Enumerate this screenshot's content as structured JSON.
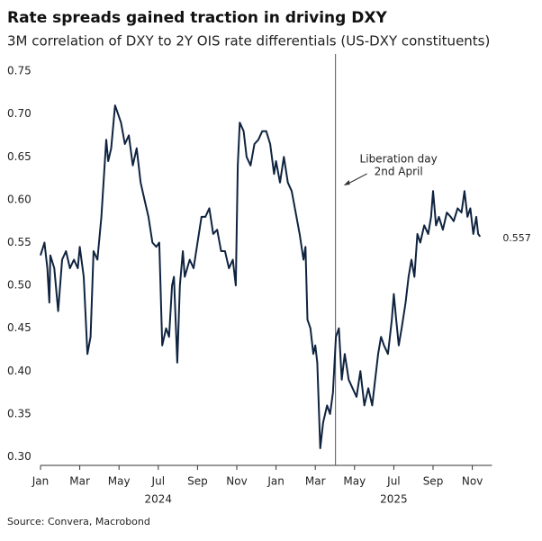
{
  "chart_data": {
    "type": "line",
    "title": "Rate spreads gained traction in driving DXY",
    "subtitle": "3M correlation of DXY to 2Y OIS rate differentials (US-DXY constituents)",
    "source": "Source: Convera, Macrobond",
    "x": [
      0,
      0.2,
      0.35,
      0.45,
      0.5,
      0.7,
      0.9,
      1.1,
      1.3,
      1.5,
      1.7,
      1.9,
      2.0,
      2.2,
      2.39,
      2.55,
      2.7,
      2.9,
      3.1,
      3.35,
      3.45,
      3.6,
      3.8,
      3.95,
      4.1,
      4.3,
      4.5,
      4.7,
      4.9,
      5.1,
      5.3,
      5.5,
      5.7,
      5.9,
      6.05,
      6.2,
      6.4,
      6.55,
      6.7,
      6.8,
      6.97,
      7.1,
      7.25,
      7.35,
      7.6,
      7.8,
      8.0,
      8.2,
      8.4,
      8.6,
      8.8,
      9.0,
      9.2,
      9.4,
      9.6,
      9.8,
      9.95,
      10.05,
      10.15,
      10.35,
      10.5,
      10.7,
      10.9,
      11.1,
      11.3,
      11.5,
      11.7,
      11.9,
      12.0,
      12.2,
      12.4,
      12.6,
      12.8,
      13.0,
      13.2,
      13.4,
      13.5,
      13.6,
      13.75,
      13.9,
      14.0,
      14.1,
      14.25,
      14.4,
      14.6,
      14.75,
      14.9,
      15.05,
      15.2,
      15.35,
      15.5,
      15.7,
      15.9,
      16.1,
      16.3,
      16.5,
      16.7,
      16.9,
      17.05,
      17.2,
      17.35,
      17.5,
      17.7,
      17.9,
      18.0,
      18.1,
      18.25,
      18.4,
      18.6,
      18.75,
      18.9,
      19.05,
      19.2,
      19.35,
      19.55,
      19.75,
      19.9,
      20.0,
      20.15,
      20.3,
      20.5,
      20.7,
      20.9,
      21.05,
      21.25,
      21.45,
      21.6,
      21.75,
      21.9,
      22.05,
      22.2,
      22.3,
      22.4
    ],
    "series": [
      {
        "name": "3M correlation",
        "color": "#0f2340",
        "values": [
          0.535,
          0.55,
          0.52,
          0.48,
          0.535,
          0.52,
          0.47,
          0.53,
          0.54,
          0.52,
          0.53,
          0.52,
          0.545,
          0.51,
          0.42,
          0.44,
          0.54,
          0.53,
          0.58,
          0.67,
          0.645,
          0.66,
          0.71,
          0.7,
          0.69,
          0.665,
          0.675,
          0.64,
          0.66,
          0.62,
          0.6,
          0.58,
          0.55,
          0.545,
          0.55,
          0.43,
          0.45,
          0.44,
          0.5,
          0.51,
          0.41,
          0.5,
          0.54,
          0.51,
          0.53,
          0.52,
          0.55,
          0.58,
          0.58,
          0.59,
          0.56,
          0.565,
          0.54,
          0.54,
          0.52,
          0.53,
          0.5,
          0.64,
          0.69,
          0.68,
          0.65,
          0.64,
          0.665,
          0.67,
          0.68,
          0.68,
          0.665,
          0.63,
          0.645,
          0.62,
          0.65,
          0.62,
          0.61,
          0.585,
          0.56,
          0.53,
          0.545,
          0.46,
          0.45,
          0.42,
          0.43,
          0.41,
          0.31,
          0.34,
          0.36,
          0.35,
          0.375,
          0.44,
          0.45,
          0.39,
          0.42,
          0.39,
          0.38,
          0.37,
          0.4,
          0.36,
          0.38,
          0.36,
          0.39,
          0.42,
          0.44,
          0.43,
          0.42,
          0.46,
          0.49,
          0.465,
          0.43,
          0.45,
          0.48,
          0.51,
          0.53,
          0.51,
          0.56,
          0.55,
          0.57,
          0.56,
          0.58,
          0.61,
          0.57,
          0.58,
          0.565,
          0.585,
          0.58,
          0.575,
          0.59,
          0.585,
          0.61,
          0.58,
          0.59,
          0.56,
          0.58,
          0.56,
          0.557
        ]
      }
    ],
    "end_label": "0.557",
    "xlim": [
      0,
      23
    ],
    "xticks": [
      {
        "value": 0,
        "label": "Jan"
      },
      {
        "value": 2,
        "label": "Mar"
      },
      {
        "value": 4,
        "label": "May"
      },
      {
        "value": 6,
        "label": "Jul"
      },
      {
        "value": 8,
        "label": "Sep"
      },
      {
        "value": 10,
        "label": "Nov"
      },
      {
        "value": 12,
        "label": "Jan"
      },
      {
        "value": 14,
        "label": "Mar"
      },
      {
        "value": 16,
        "label": "May"
      },
      {
        "value": 18,
        "label": "Jul"
      },
      {
        "value": 20,
        "label": "Sep"
      },
      {
        "value": 22,
        "label": "Nov"
      }
    ],
    "x_groups": [
      {
        "label": "2024",
        "range": [
          0,
          12
        ]
      },
      {
        "label": "2025",
        "range": [
          12,
          24
        ]
      }
    ],
    "ylim": [
      0.29,
      0.77
    ],
    "yticks": [
      {
        "value": 0.3,
        "label": "0.30"
      },
      {
        "value": 0.35,
        "label": "0.35"
      },
      {
        "value": 0.4,
        "label": "0.40"
      },
      {
        "value": 0.45,
        "label": "0.45"
      },
      {
        "value": 0.5,
        "label": "0.50"
      },
      {
        "value": 0.55,
        "label": "0.55"
      },
      {
        "value": 0.6,
        "label": "0.60"
      },
      {
        "value": 0.65,
        "label": "0.65"
      },
      {
        "value": 0.7,
        "label": "0.70"
      },
      {
        "value": 0.75,
        "label": "0.75"
      }
    ],
    "vline": {
      "x": 15.03,
      "lines": [
        "Liberation day",
        "2nd April"
      ]
    }
  }
}
